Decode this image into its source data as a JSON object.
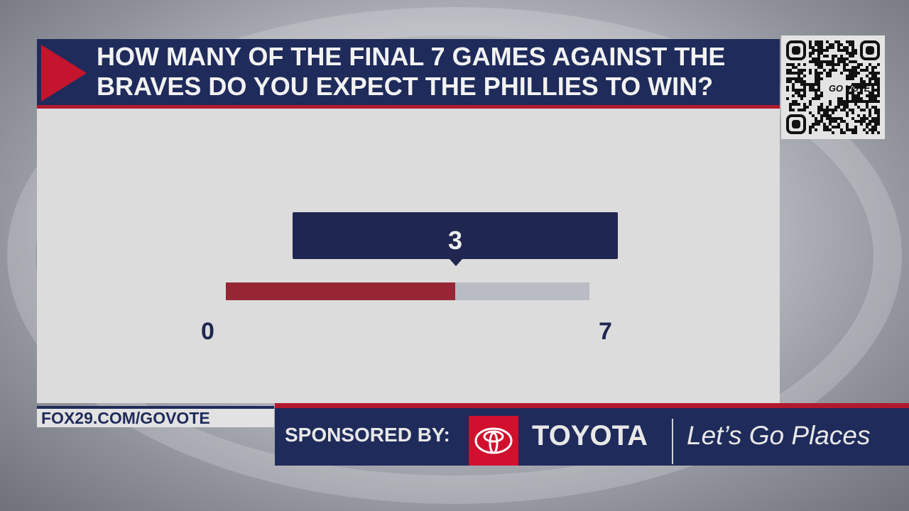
{
  "poll": {
    "question": "HOW MANY OF THE FINAL 7 GAMES AGAINST THE BRAVES DO YOU EXPECT THE PHILLIES TO WIN?",
    "answer": "3",
    "min_label": "0",
    "max_label": "7",
    "value": 3,
    "range": [
      0,
      7
    ]
  },
  "qr": {
    "logo_text": "GO VOTE"
  },
  "footer": {
    "url": "FOX29.COM/GOVOTE",
    "sponsored_by": "SPONSORED BY:",
    "brand": "TOYOTA",
    "tagline": "Let’s Go Places"
  },
  "colors": {
    "navy": "#1f2b5a",
    "red": "#b3182f",
    "fill": "#972634",
    "track": "#b9bcc4"
  }
}
